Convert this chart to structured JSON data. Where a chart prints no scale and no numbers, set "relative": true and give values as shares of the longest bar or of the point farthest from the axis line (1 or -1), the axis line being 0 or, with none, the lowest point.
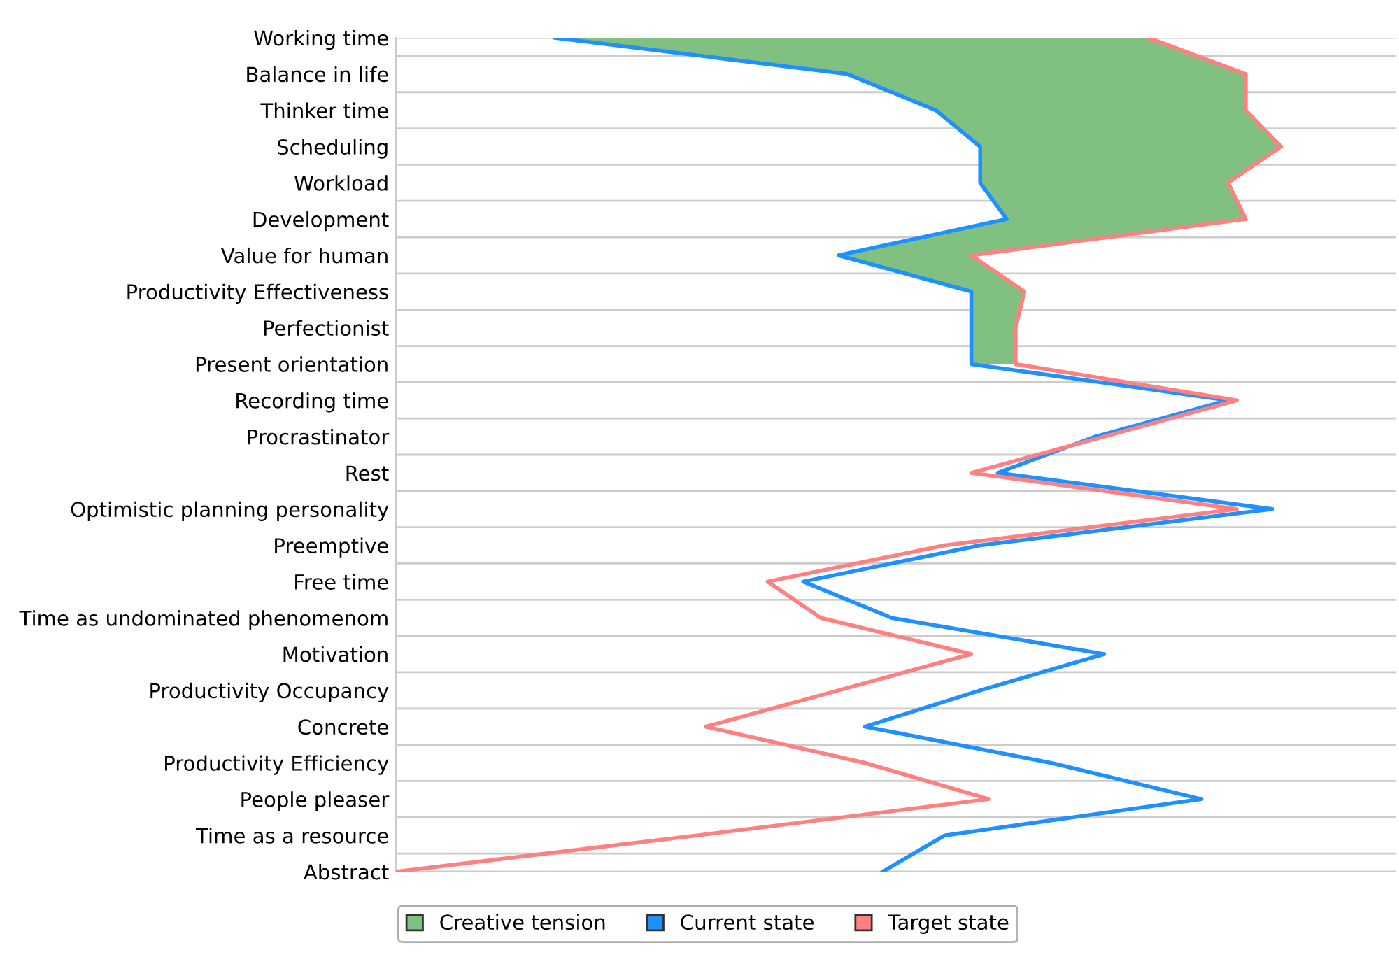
{
  "chart_data": {
    "type": "line",
    "relative": true,
    "orientation": "horizontal",
    "grid": true,
    "legend": "bottom",
    "marker": "none",
    "line_style": "solid",
    "categories": [
      "Working time",
      "Balance in life",
      "Thinker time",
      "Scheduling",
      "Workload",
      "Development",
      "Value for human",
      "Productivity Effectiveness",
      "Perfectionist",
      "Present orientation",
      "Recording time",
      "Procrastinator",
      "Rest",
      "Optimistic planning personality",
      "Preemptive",
      "Free time",
      "Time as undominated phenomenom",
      "Motivation",
      "Productivity Occupancy",
      "Concrete",
      "Productivity Efficiency",
      "People pleaser",
      "Time as a resource",
      "Abstract"
    ],
    "series": [
      {
        "name": "Current state",
        "color": "#1e90ff",
        "values": [
          0.18,
          0.51,
          0.61,
          0.66,
          0.66,
          0.69,
          0.5,
          0.65,
          0.65,
          0.65,
          0.94,
          0.79,
          0.68,
          0.99,
          0.66,
          0.46,
          0.56,
          0.8,
          0.66,
          0.53,
          0.74,
          0.91,
          0.62,
          0.55
        ]
      },
      {
        "name": "Creative tension",
        "type": "area",
        "color": "#80c080",
        "values": [
          0.85,
          0.96,
          0.96,
          1.0,
          0.94,
          0.96,
          0.65,
          0.71,
          0.7,
          0.7,
          null,
          null,
          null,
          null,
          null,
          null,
          null,
          null,
          null,
          null,
          null,
          null,
          null,
          null
        ]
      },
      {
        "name": "Target state",
        "color": "#ff8080",
        "values": [
          0.85,
          0.96,
          0.96,
          1.0,
          0.94,
          0.96,
          0.65,
          0.71,
          0.7,
          0.7,
          0.95,
          0.8,
          0.65,
          0.95,
          0.62,
          0.42,
          0.48,
          0.65,
          0.5,
          0.35,
          0.53,
          0.67,
          0.34,
          0.0
        ]
      }
    ]
  }
}
